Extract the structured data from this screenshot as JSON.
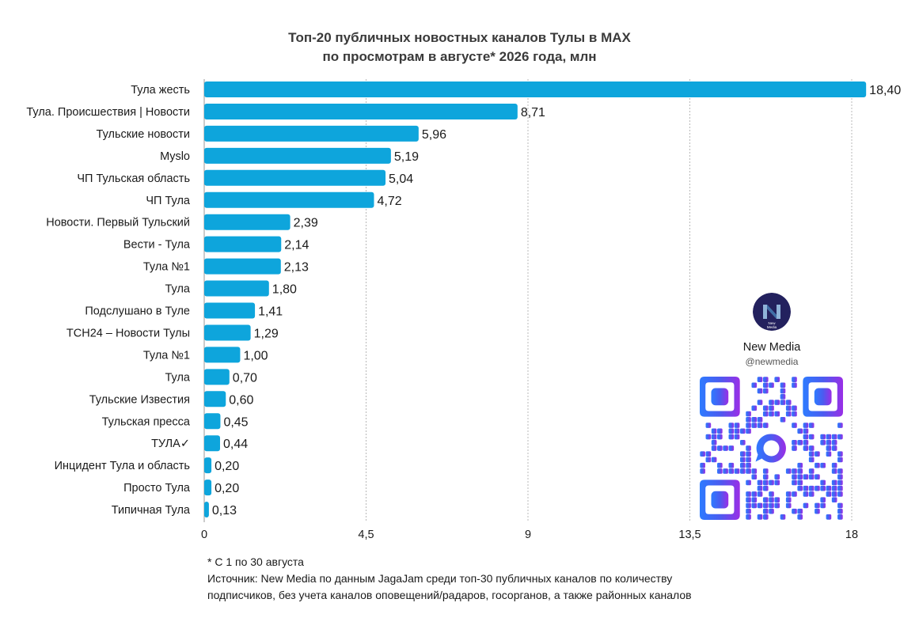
{
  "chart_data": {
    "type": "bar",
    "orientation": "horizontal",
    "title": "Топ-20 публичных новостных каналов Тулы в MAX\nпо просмотрам в августе* 2026 года, млн",
    "categories": [
      "Тула жесть",
      "Тула. Происшествия | Новости",
      "Тульские новости",
      "Myslo",
      "ЧП Тульская область",
      "ЧП Тула",
      "Новости. Первый Тульский",
      "Вести - Тула",
      "Тула №1",
      "Тула",
      "Подслушано в Туле",
      "ТСН24 – Новости Тулы",
      "Тула №1",
      "Тула",
      "Тульские Известия",
      "Тульская пресса",
      "ТУЛА✓",
      "Инцидент Тула и область",
      "Просто Тула",
      "Типичная Тула"
    ],
    "values": [
      18.4,
      8.71,
      5.96,
      5.19,
      5.04,
      4.72,
      2.39,
      2.14,
      2.13,
      1.8,
      1.41,
      1.29,
      1.0,
      0.7,
      0.6,
      0.45,
      0.44,
      0.2,
      0.2,
      0.13
    ],
    "value_labels": [
      "18,40",
      "8,71",
      "5,96",
      "5,19",
      "5,04",
      "4,72",
      "2,39",
      "2,14",
      "2,13",
      "1,80",
      "1,41",
      "1,29",
      "1,00",
      "0,70",
      "0,60",
      "0,45",
      "0,44",
      "0,20",
      "0,20",
      "0,13"
    ],
    "xlim": [
      0,
      18
    ],
    "xticks": [
      0,
      4.5,
      9,
      13.5,
      18
    ],
    "xtick_labels": [
      "0",
      "4,5",
      "9",
      "13,5",
      "18"
    ],
    "grid": "vertical dotted",
    "bar_color": "#0ea5dc"
  },
  "brand": {
    "name": "New Media",
    "handle": "@newmedia",
    "logo_text": "New Media"
  },
  "notes": {
    "footnote": "* С 1 по 30 августа",
    "source_line1": "Источник: New Media по данным JagaJam среди топ-30 публичных каналов по количеству",
    "source_line2": "подписчиков, без учета каналов оповещений/радаров, госорганов, а также районных каналов"
  }
}
